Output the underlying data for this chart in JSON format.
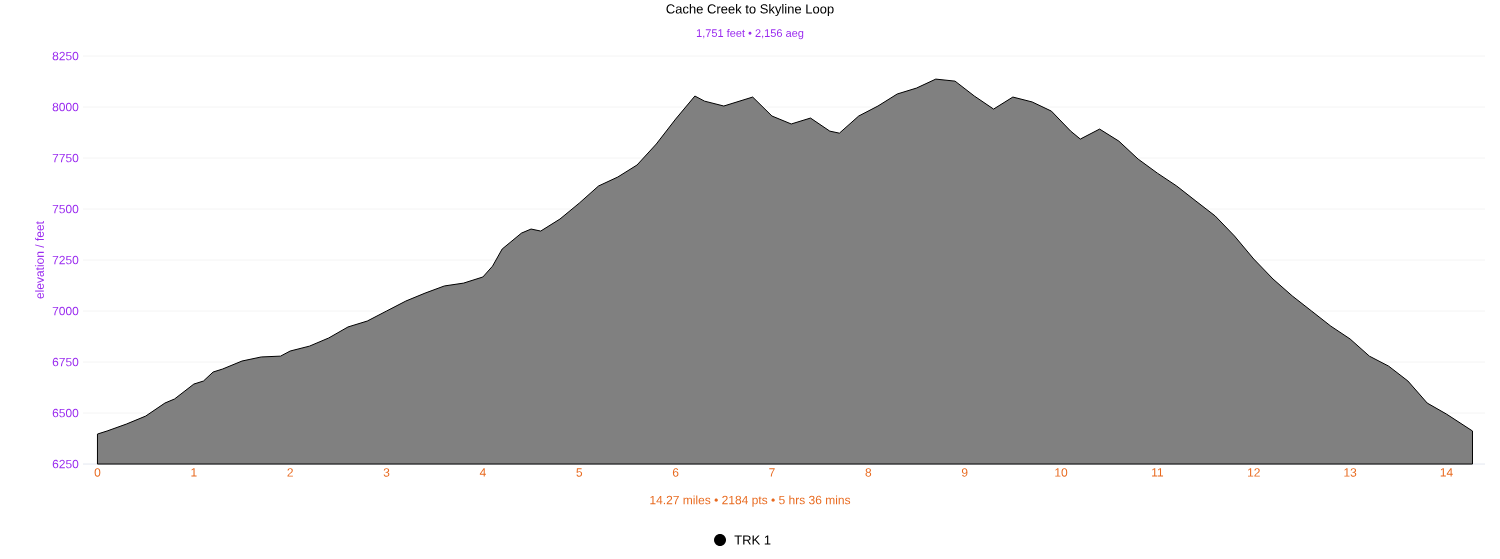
{
  "chart_data": {
    "type": "area",
    "title": "Cache Creek to Skyline Loop",
    "subtitle": "1,751 feet • 2,156 aeg",
    "ylabel": "elevation / feet",
    "annotations": [
      "14.27 miles • 2184 pts • 5 hrs 36 mins"
    ],
    "xlim": [
      -0.15,
      14.4
    ],
    "xticks": [
      0,
      1,
      2,
      3,
      4,
      5,
      6,
      7,
      8,
      9,
      10,
      11,
      12,
      13,
      14
    ],
    "ylim": [
      6250,
      8250
    ],
    "yticks": [
      6250,
      6500,
      6750,
      7000,
      7250,
      7500,
      7750,
      8000,
      8250
    ],
    "grid": "y",
    "legend": "bottom",
    "series": [
      {
        "name": "TRK 1",
        "color": "#000000",
        "x": [
          0,
          0.1,
          0.3,
          0.5,
          0.7,
          0.8,
          1.0,
          1.1,
          1.2,
          1.3,
          1.5,
          1.7,
          1.9,
          2.0,
          2.2,
          2.4,
          2.6,
          2.8,
          3.0,
          3.2,
          3.4,
          3.6,
          3.8,
          4.0,
          4.1,
          4.2,
          4.4,
          4.5,
          4.6,
          4.8,
          5.0,
          5.2,
          5.4,
          5.6,
          5.8,
          6.0,
          6.2,
          6.3,
          6.5,
          6.8,
          7.0,
          7.2,
          7.4,
          7.6,
          7.7,
          7.9,
          8.1,
          8.3,
          8.5,
          8.7,
          8.9,
          9.1,
          9.3,
          9.5,
          9.7,
          9.9,
          10.1,
          10.2,
          10.4,
          10.6,
          10.8,
          11.0,
          11.2,
          11.4,
          11.6,
          11.8,
          12.0,
          12.2,
          12.4,
          12.6,
          12.8,
          13.0,
          13.2,
          13.4,
          13.6,
          13.8,
          14.0,
          14.27
        ],
        "values": [
          6397,
          6412,
          6446,
          6485,
          6549,
          6569,
          6642,
          6657,
          6701,
          6716,
          6755,
          6775,
          6779,
          6804,
          6828,
          6868,
          6922,
          6951,
          7000,
          7049,
          7088,
          7123,
          7137,
          7167,
          7220,
          7304,
          7382,
          7402,
          7392,
          7451,
          7529,
          7613,
          7657,
          7716,
          7819,
          7941,
          8054,
          8029,
          8005,
          8049,
          7956,
          7917,
          7946,
          7882,
          7872,
          7956,
          8005,
          8064,
          8093,
          8137,
          8127,
          8054,
          7990,
          8049,
          8025,
          7980,
          7882,
          7843,
          7892,
          7833,
          7745,
          7676,
          7613,
          7539,
          7466,
          7368,
          7255,
          7157,
          7074,
          7000,
          6926,
          6863,
          6779,
          6730,
          6657,
          6549,
          6495,
          6412
        ]
      }
    ]
  }
}
